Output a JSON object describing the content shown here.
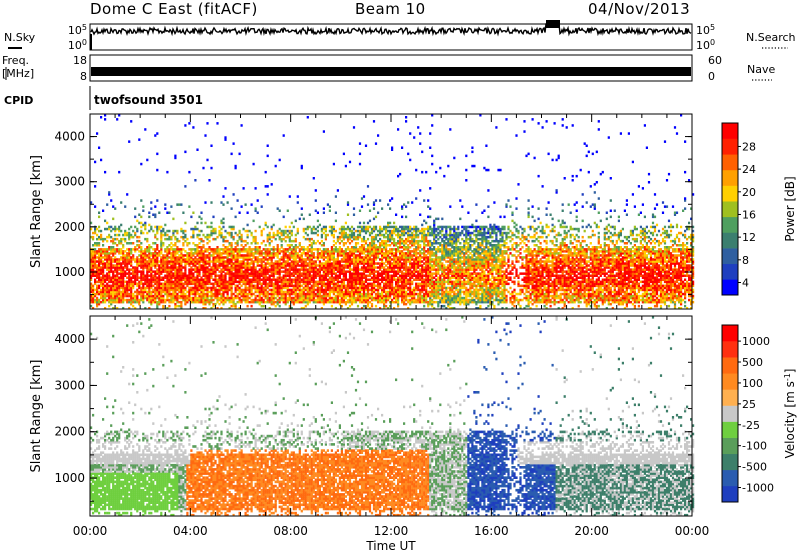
{
  "header": {
    "station": "Dome C East (fitACF)",
    "beam": "Beam 10",
    "date": "04/Nov/2013"
  },
  "strips": {
    "nsky": {
      "label": "N.Sky",
      "ticks": [
        "10^5",
        "10^0"
      ]
    },
    "nsearch": {
      "label": "N.Search",
      "ticks": [
        "10^5",
        "10^0"
      ]
    },
    "freq": {
      "label_line1": "Freq.",
      "label_line2": "[MHz]",
      "ticks": [
        "18",
        "8"
      ]
    },
    "nave": {
      "label": "Nave",
      "ticks": [
        "60",
        "0"
      ]
    },
    "cpid": {
      "label": "CPID",
      "value": "twofsound 3501"
    }
  },
  "chart_data": [
    {
      "type": "heatmap",
      "name": "power",
      "ylabel": "Slant Range [km]",
      "yticks": [
        "4000",
        "3000",
        "2000",
        "1000"
      ],
      "ytick_values": [
        4000,
        3000,
        2000,
        1000
      ],
      "ylim": [
        180,
        4500
      ],
      "xlim": [
        0,
        24
      ],
      "colorbar": {
        "label": "Power [dB]",
        "ticks": [
          "28",
          "24",
          "20",
          "16",
          "12",
          "8",
          "4"
        ],
        "colors": [
          "#0000ff",
          "#1f3fbf",
          "#2f5fa0",
          "#3b7f6f",
          "#4f9f5f",
          "#9fc020",
          "#ffd000",
          "#ffa000",
          "#ff6000",
          "#ff2000",
          "#ff0000"
        ]
      }
    },
    {
      "type": "heatmap",
      "name": "velocity",
      "ylabel": "Slant Range [km]",
      "yticks": [
        "4000",
        "3000",
        "2000",
        "1000"
      ],
      "ytick_values": [
        4000,
        3000,
        2000,
        1000
      ],
      "ylim": [
        180,
        4500
      ],
      "xlim": [
        0,
        24
      ],
      "colorbar": {
        "label": "Velocity [m s^-1]",
        "ticks": [
          "1000",
          "500",
          "100",
          "25",
          "-25",
          "-100",
          "-500",
          "-1000"
        ],
        "colors": [
          "#1f3fbf",
          "#2a5cb0",
          "#3d7f6a",
          "#5a9e5a",
          "#6fcf3f",
          "#c8c8c8",
          "#ffb050",
          "#ff8a20",
          "#ff6a10",
          "#ff3010",
          "#ff0000"
        ]
      }
    }
  ],
  "xaxis": {
    "label": "Time UT",
    "ticks": [
      "00:00",
      "04:00",
      "08:00",
      "12:00",
      "16:00",
      "20:00",
      "00:00"
    ]
  }
}
